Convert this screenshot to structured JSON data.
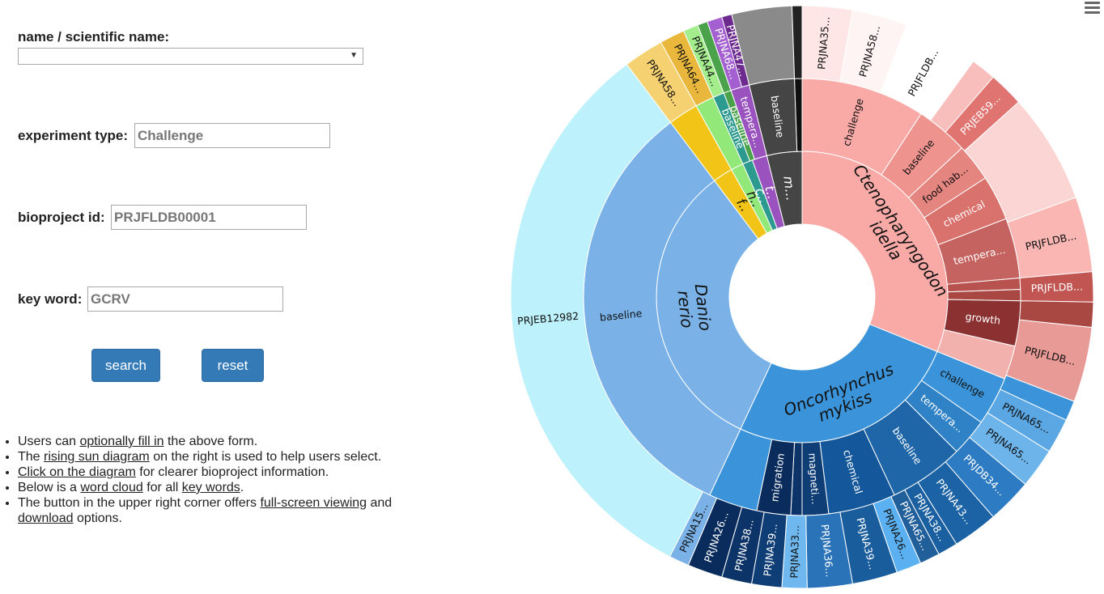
{
  "form": {
    "name_label": "name / scientific name:",
    "name_value": "",
    "experiment_type_label": "experiment type:",
    "experiment_type_value": "Challenge",
    "bioproject_label": "bioproject id:",
    "bioproject_value": "PRJFLDB00001",
    "keyword_label": "key word:",
    "keyword_value": "GCRV",
    "search_label": "search",
    "reset_label": "reset"
  },
  "notes": {
    "n1_pre": "Users can ",
    "n1_link": "optionally fill in",
    "n1_post": " the above form.",
    "n2_pre": "The ",
    "n2_link": "rising sun diagram",
    "n2_post": " on the right is used to help users select.",
    "n3_link": "Click on the diagram",
    "n3_post": " for clearer bioproject information.",
    "n4_pre": "Below is a ",
    "n4_link1": "word cloud",
    "n4_mid": " for all ",
    "n4_link2": "key words",
    "n4_post": ".",
    "n5_pre": "The button in the upper right corner offers ",
    "n5_link1": "full-screen viewing",
    "n5_mid": " and ",
    "n5_link2": "download",
    "n5_post": " options."
  },
  "menu_icon": "hamburger-menu-icon",
  "chart_data": {
    "type": "sunburst",
    "center_color": "#ffffff",
    "rings": [
      {
        "level": "species",
        "segments": [
          {
            "label": "Ctenopharyngodon idella",
            "start": 0,
            "end": 112,
            "color": "#f9aaa7"
          },
          {
            "label": "Oncorhynchus mykiss",
            "start": 112,
            "end": 205,
            "color": "#3b94d9"
          },
          {
            "label": "Danio rerio",
            "start": 205,
            "end": 323,
            "color": "#7ab2e8"
          },
          {
            "label": "f..",
            "start": 323,
            "end": 331,
            "color": "#f2c417"
          },
          {
            "label": "h..",
            "start": 331,
            "end": 336,
            "color": "#92e878"
          },
          {
            "label": "c..",
            "start": 336,
            "end": 340,
            "color": "#2c9a8f"
          },
          {
            "label": "t..",
            "start": 340,
            "end": 346,
            "color": "#9a52be"
          },
          {
            "label": "m...",
            "start": 346,
            "end": 360,
            "color": "#454545"
          }
        ]
      },
      {
        "level": "experiment",
        "segments": [
          {
            "label": "challenge",
            "start": 0,
            "end": 33,
            "color": "#f9aaa7"
          },
          {
            "label": "baseline",
            "start": 33,
            "end": 47,
            "color": "#ef938f"
          },
          {
            "label": "food hab...",
            "start": 47,
            "end": 57,
            "color": "#e58580"
          },
          {
            "label": "chemical",
            "start": 57,
            "end": 69,
            "color": "#d9716c"
          },
          {
            "label": "tempera...",
            "start": 69,
            "end": 85,
            "color": "#c56360"
          },
          {
            "label": "",
            "start": 85,
            "end": 88,
            "color": "#b8524f"
          },
          {
            "label": "",
            "start": 88,
            "end": 91,
            "color": "#a94843"
          },
          {
            "label": "growth",
            "start": 91,
            "end": 103,
            "color": "#8b3131"
          },
          {
            "label": "",
            "start": 103,
            "end": 112,
            "color": "#f3b1ae"
          },
          {
            "label": "challenge",
            "start": 112,
            "end": 125,
            "color": "#3b94d9"
          },
          {
            "label": "tempera...",
            "start": 125,
            "end": 135,
            "color": "#2f82c6"
          },
          {
            "label": "baseline",
            "start": 135,
            "end": 155,
            "color": "#1f66a8"
          },
          {
            "label": "chemical",
            "start": 155,
            "end": 173,
            "color": "#14579a"
          },
          {
            "label": "magneti...",
            "start": 173,
            "end": 180,
            "color": "#0f3d75"
          },
          {
            "label": "",
            "start": 180,
            "end": 183,
            "color": "#0c3468"
          },
          {
            "label": "migration",
            "start": 183,
            "end": 192,
            "color": "#0a2c5c"
          },
          {
            "label": "",
            "start": 192,
            "end": 205,
            "color": "#3b94d9"
          },
          {
            "label": "baseline",
            "start": 205,
            "end": 323,
            "color": "#7ab2e8"
          },
          {
            "label": "",
            "start": 323,
            "end": 331,
            "color": "#f2c417"
          },
          {
            "label": "",
            "start": 331,
            "end": 336,
            "color": "#92e878"
          },
          {
            "label": "baseline",
            "start": 336,
            "end": 339,
            "color": "#2c9a8f"
          },
          {
            "label": "baseline",
            "start": 339,
            "end": 341,
            "color": "#4aa34a"
          },
          {
            "label": "tempera...",
            "start": 341,
            "end": 346,
            "color": "#9a52be"
          },
          {
            "label": "baseline",
            "start": 346,
            "end": 358,
            "color": "#454545"
          },
          {
            "label": "",
            "start": 358,
            "end": 360,
            "color": "#111111"
          }
        ]
      },
      {
        "level": "bioproject",
        "segments": [
          {
            "label": "PRJNA35...",
            "start": 0,
            "end": 10,
            "color": "#fde6e5"
          },
          {
            "label": "PRJNA58...",
            "start": 10,
            "end": 21,
            "color": "#fff4f4"
          },
          {
            "label": "PRJFLDB...",
            "start": 21,
            "end": 36,
            "color": "#ffffff"
          },
          {
            "label": "",
            "start": 36,
            "end": 41,
            "color": "#f8bebb"
          },
          {
            "label": "PRJEB59...",
            "start": 41,
            "end": 48,
            "color": "#e07470"
          },
          {
            "label": "",
            "start": 48,
            "end": 70,
            "color": "#fbd5d3"
          },
          {
            "label": "PRJFLDB...",
            "start": 70,
            "end": 85,
            "color": "#f9b6b3"
          },
          {
            "label": "PRJFLDB...",
            "start": 85,
            "end": 91,
            "color": "#c05552"
          },
          {
            "label": "",
            "start": 91,
            "end": 96,
            "color": "#a94843"
          },
          {
            "label": "PRJFLDB...",
            "start": 96,
            "end": 111,
            "color": "#e89a96"
          },
          {
            "label": "",
            "start": 111,
            "end": 115,
            "color": "#3b94d9"
          },
          {
            "label": "PRJNA65...",
            "start": 115,
            "end": 122,
            "color": "#5aa7e3"
          },
          {
            "label": "PRJNA65...",
            "start": 122,
            "end": 130,
            "color": "#6cb4ea"
          },
          {
            "label": "PRJDB34...",
            "start": 130,
            "end": 139,
            "color": "#2d7bc2"
          },
          {
            "label": "PRJNA43...",
            "start": 139,
            "end": 148,
            "color": "#1c63a6"
          },
          {
            "label": "PRJNA38...",
            "start": 148,
            "end": 152,
            "color": "#1a5fa0"
          },
          {
            "label": "PRJNA65...",
            "start": 152,
            "end": 156,
            "color": "#215f9a"
          },
          {
            "label": "PRJNA26...",
            "start": 156,
            "end": 161,
            "color": "#5ab0f0"
          },
          {
            "label": "PRJNA39...",
            "start": 161,
            "end": 170,
            "color": "#1a5d9c"
          },
          {
            "label": "PRJNA36...",
            "start": 170,
            "end": 179,
            "color": "#2a73b8"
          },
          {
            "label": "PRJNA33...",
            "start": 179,
            "end": 184,
            "color": "#6fb8ef"
          },
          {
            "label": "PRJNA39...",
            "start": 184,
            "end": 190,
            "color": "#0f3d75"
          },
          {
            "label": "PRJNA38...",
            "start": 190,
            "end": 196,
            "color": "#0c3468"
          },
          {
            "label": "PRJNA26...",
            "start": 196,
            "end": 203,
            "color": "#0a2c5c"
          },
          {
            "label": "PRJNA15...",
            "start": 203,
            "end": 207,
            "color": "#7ab2e8"
          },
          {
            "label": "PRJEB12982",
            "start": 207,
            "end": 323,
            "color": "#bdf1fb"
          },
          {
            "label": "PRJNA58...",
            "start": 323,
            "end": 331,
            "color": "#f6d171"
          },
          {
            "label": "PRJNA64...",
            "start": 331,
            "end": 336,
            "color": "#e9b73b"
          },
          {
            "label": "PRJNA44...",
            "start": 336,
            "end": 339,
            "color": "#a3ed8d"
          },
          {
            "label": "",
            "start": 339,
            "end": 341,
            "color": "#4aa34a"
          },
          {
            "label": "PRJNA68...",
            "start": 341,
            "end": 344,
            "color": "#a45fd0"
          },
          {
            "label": "PRJNA47...",
            "start": 344,
            "end": 346,
            "color": "#6c2a8e"
          },
          {
            "label": "",
            "start": 346,
            "end": 358,
            "color": "#8a8a8a"
          },
          {
            "label": "",
            "start": 358,
            "end": 360,
            "color": "#222222"
          }
        ]
      }
    ]
  }
}
